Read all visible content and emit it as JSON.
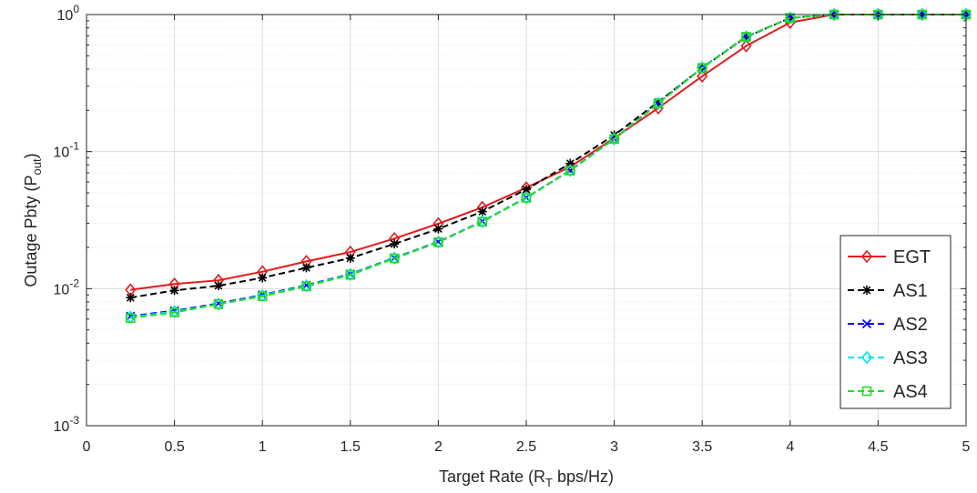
{
  "chart_data": {
    "type": "line",
    "title": "",
    "xlabel": {
      "main": "Target Rate (R",
      "sub": "T",
      "rest": " bps/Hz)"
    },
    "ylabel": {
      "main": "Outage Pbty (P",
      "sub": "out",
      "rest": ")"
    },
    "xlim": [
      0,
      5
    ],
    "ylim": [
      0.001,
      1
    ],
    "yscale": "log",
    "grid": true,
    "xticks": [
      0,
      0.5,
      1,
      1.5,
      2,
      2.5,
      3,
      3.5,
      4,
      4.5,
      5
    ],
    "xtick_labels": [
      "0",
      "0.5",
      "1",
      "1.5",
      "2",
      "2.5",
      "3",
      "3.5",
      "4",
      "4.5",
      "5"
    ],
    "yticks": [
      {
        "value": 0.001,
        "base": "10",
        "exp": "-3"
      },
      {
        "value": 0.01,
        "base": "10",
        "exp": "-2"
      },
      {
        "value": 0.1,
        "base": "10",
        "exp": "-1"
      },
      {
        "value": 1,
        "base": "10",
        "exp": "0"
      }
    ],
    "legend_position": "bottom-right",
    "x": [
      0.25,
      0.5,
      0.75,
      1,
      1.25,
      1.5,
      1.75,
      2,
      2.25,
      2.5,
      2.75,
      3,
      3.25,
      3.5,
      3.75,
      4,
      4.25,
      4.5,
      4.75,
      5
    ],
    "series": [
      {
        "name": "EGT",
        "color": "#e31a1c",
        "dash": "solid",
        "marker": "diamond",
        "values": [
          0.0098,
          0.0108,
          0.0115,
          0.0133,
          0.0158,
          0.0185,
          0.0232,
          0.0298,
          0.0392,
          0.0545,
          0.0775,
          0.1255,
          0.208,
          0.355,
          0.59,
          0.875,
          1.0,
          1.0,
          1.0,
          1.0
        ]
      },
      {
        "name": "AS1",
        "color": "#000000",
        "dash": "dashed",
        "marker": "star",
        "values": [
          0.0086,
          0.0097,
          0.0105,
          0.012,
          0.0142,
          0.0167,
          0.0212,
          0.0273,
          0.0365,
          0.053,
          0.082,
          0.132,
          0.23,
          0.408,
          0.685,
          0.945,
          1.0,
          1.0,
          1.0,
          1.0
        ]
      },
      {
        "name": "AS2",
        "color": "#0000ff",
        "dash": "dashed",
        "marker": "x",
        "values": [
          0.0063,
          0.0069,
          0.0078,
          0.009,
          0.0106,
          0.0128,
          0.0168,
          0.022,
          0.031,
          0.0462,
          0.073,
          0.124,
          0.226,
          0.41,
          0.69,
          0.945,
          1.0,
          1.0,
          1.0,
          1.0
        ]
      },
      {
        "name": "AS3",
        "color": "#00e5ee",
        "dash": "dashed",
        "marker": "diamond",
        "values": [
          0.0062,
          0.0068,
          0.0077,
          0.0089,
          0.0105,
          0.0127,
          0.0167,
          0.0219,
          0.0309,
          0.0461,
          0.0728,
          0.1238,
          0.225,
          0.409,
          0.689,
          0.945,
          1.0,
          1.0,
          1.0,
          1.0
        ]
      },
      {
        "name": "AS4",
        "color": "#22dd22",
        "dash": "dashed",
        "marker": "square",
        "values": [
          0.0061,
          0.0067,
          0.0077,
          0.0088,
          0.0104,
          0.0126,
          0.0166,
          0.0218,
          0.0308,
          0.046,
          0.0727,
          0.1237,
          0.224,
          0.408,
          0.688,
          0.945,
          1.0,
          1.0,
          1.0,
          1.0
        ]
      }
    ]
  }
}
